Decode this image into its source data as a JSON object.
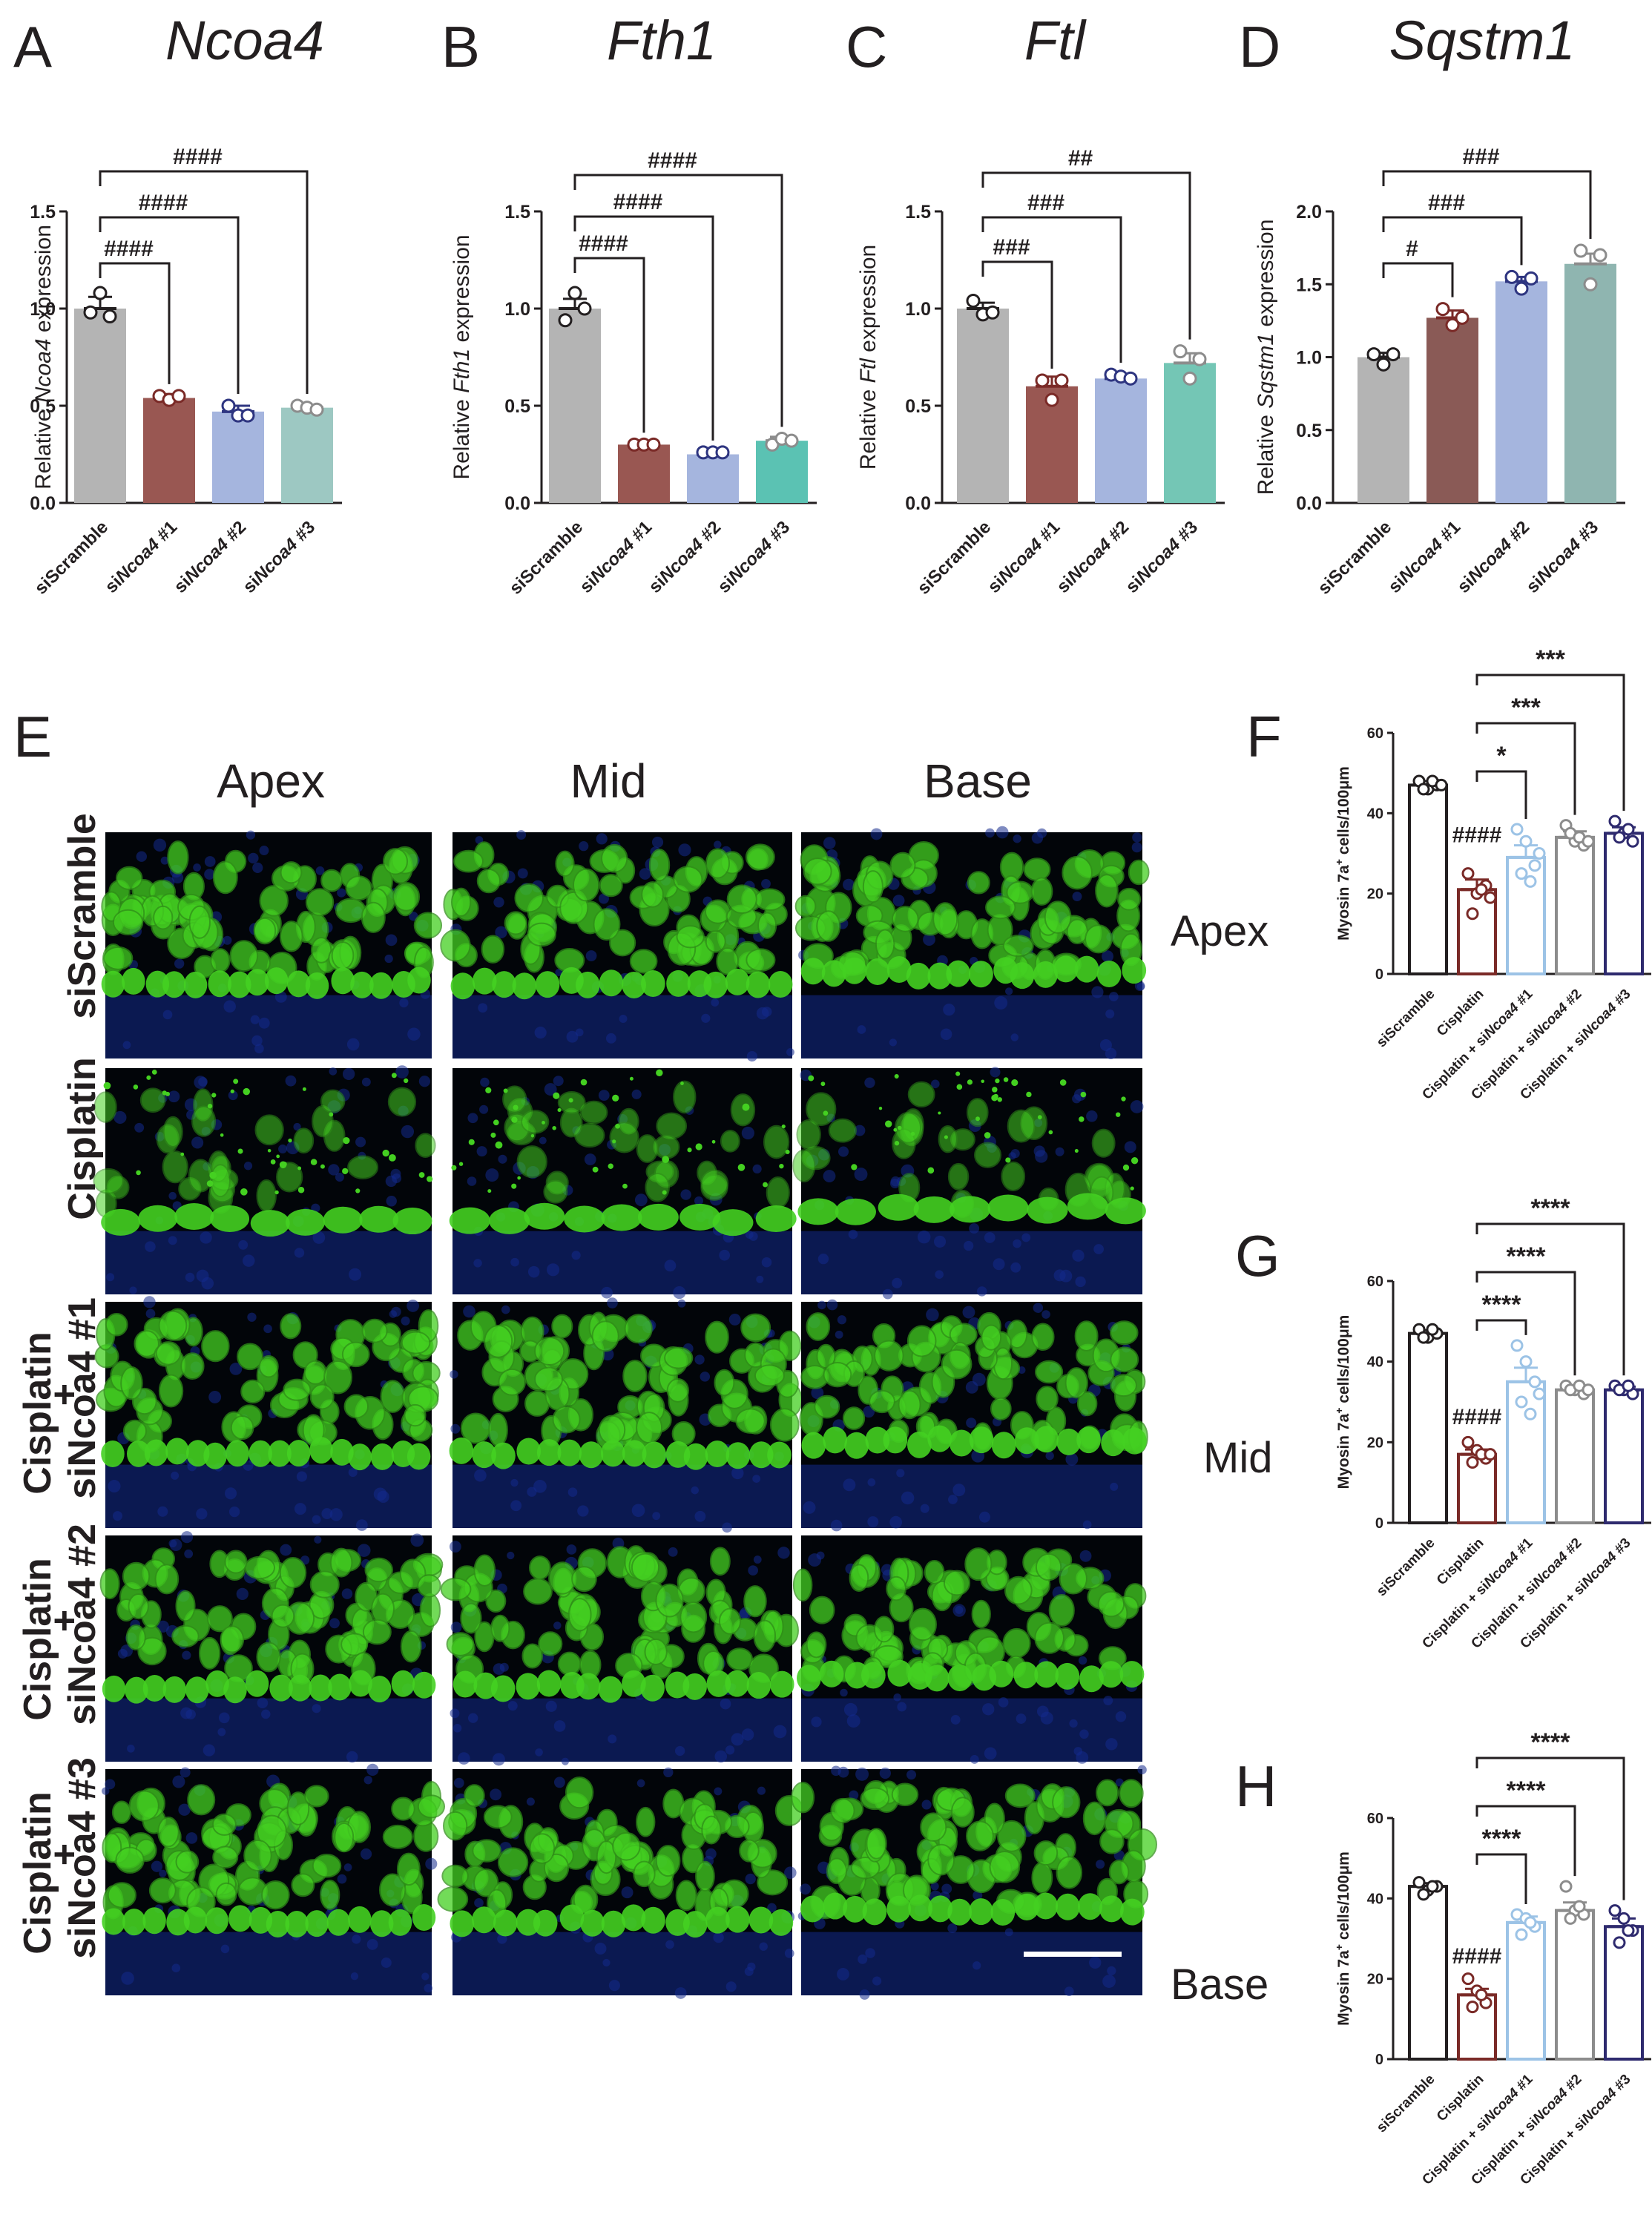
{
  "figure": {
    "panel_labels": [
      "A",
      "B",
      "C",
      "D",
      "E",
      "F",
      "G",
      "H"
    ],
    "image_panel": {
      "column_labels": [
        "Apex",
        "Mid",
        "Base"
      ],
      "side_labels": [
        "Apex",
        "Mid",
        "Base"
      ],
      "row_labels": [
        {
          "line1": "siScramble",
          "line2": "",
          "line3": ""
        },
        {
          "line1": "Cisplatin",
          "line2": "",
          "line3": ""
        },
        {
          "line1": "Cisplatin",
          "line2": "+",
          "line3": "siNcoa4 #1"
        },
        {
          "line1": "Cisplatin",
          "line2": "+",
          "line3": "siNcoa4 #2"
        },
        {
          "line1": "Cisplatin",
          "line2": "+",
          "line3": "siNcoa4 #3"
        }
      ],
      "colors": {
        "hair_cell": "#44d021",
        "nuclei": "#142a8c",
        "background": "#020509"
      }
    }
  },
  "chart_data": [
    {
      "panel": "A",
      "type": "bar",
      "title": "Ncoa4",
      "ylabel": "Relative Ncoa4 expression",
      "ylim": [
        0,
        1.5
      ],
      "yticks": [
        "0.0",
        "0.5",
        "1.0",
        "1.5"
      ],
      "categories": [
        "siScramble",
        "siNcoa4 #1",
        "siNcoa4 #2",
        "siNcoa4 #3"
      ],
      "values": [
        1.0,
        0.54,
        0.47,
        0.49
      ],
      "errors": [
        0.06,
        0.02,
        0.03,
        0.01
      ],
      "points": [
        [
          1.08,
          0.98,
          0.96
        ],
        [
          0.55,
          0.53,
          0.55
        ],
        [
          0.5,
          0.45,
          0.45
        ],
        [
          0.5,
          0.49,
          0.48
        ]
      ],
      "colors": [
        "#b4b4b4",
        "#995752",
        "#a5b5de",
        "#9dc8c2"
      ],
      "point_colors": [
        "#231f20",
        "#7a2a27",
        "#2e3580",
        "#8c8c8c"
      ],
      "comparisons": [
        {
          "to": 1,
          "label": "####"
        },
        {
          "to": 2,
          "label": "####"
        },
        {
          "to": 3,
          "label": "####"
        }
      ]
    },
    {
      "panel": "B",
      "type": "bar",
      "title": "Fth1",
      "ylabel": "Relative Fth1 expression",
      "ylim": [
        0,
        1.5
      ],
      "yticks": [
        "0.0",
        "0.5",
        "1.0",
        "1.5"
      ],
      "categories": [
        "siScramble",
        "siNcoa4 #1",
        "siNcoa4 #2",
        "siNcoa4 #3"
      ],
      "values": [
        1.0,
        0.3,
        0.25,
        0.32
      ],
      "errors": [
        0.05,
        0.01,
        0.01,
        0.02
      ],
      "points": [
        [
          1.08,
          0.94,
          1.0
        ],
        [
          0.3,
          0.3,
          0.3
        ],
        [
          0.26,
          0.26,
          0.26
        ],
        [
          0.3,
          0.33,
          0.32
        ]
      ],
      "colors": [
        "#b4b4b4",
        "#995752",
        "#a5b5de",
        "#5bc2b3"
      ],
      "point_colors": [
        "#231f20",
        "#7a2a27",
        "#2e3580",
        "#8c8c8c"
      ],
      "comparisons": [
        {
          "to": 1,
          "label": "####"
        },
        {
          "to": 2,
          "label": "####"
        },
        {
          "to": 3,
          "label": "####"
        }
      ]
    },
    {
      "panel": "C",
      "type": "bar",
      "title": "Ftl",
      "ylabel": "Relative Ftl expression",
      "ylim": [
        0,
        1.5
      ],
      "yticks": [
        "0.0",
        "0.5",
        "1.0",
        "1.5"
      ],
      "categories": [
        "siScramble",
        "siNcoa4 #1",
        "siNcoa4 #2",
        "siNcoa4 #3"
      ],
      "values": [
        1.0,
        0.6,
        0.64,
        0.72
      ],
      "errors": [
        0.03,
        0.05,
        0.02,
        0.05
      ],
      "points": [
        [
          1.04,
          0.97,
          0.98
        ],
        [
          0.63,
          0.53,
          0.63
        ],
        [
          0.66,
          0.65,
          0.64
        ],
        [
          0.78,
          0.64,
          0.74
        ]
      ],
      "colors": [
        "#b4b4b4",
        "#995752",
        "#a5b5de",
        "#74c6b5"
      ],
      "point_colors": [
        "#231f20",
        "#7a2a27",
        "#2e3580",
        "#8c8c8c"
      ],
      "comparisons": [
        {
          "to": 1,
          "label": "###"
        },
        {
          "to": 2,
          "label": "###"
        },
        {
          "to": 3,
          "label": "##"
        }
      ]
    },
    {
      "panel": "D",
      "type": "bar",
      "title": "Sqstm1",
      "ylabel": "Relative Sqstm1 expression",
      "ylim": [
        0,
        2.0
      ],
      "yticks": [
        "0.0",
        "0.5",
        "1.0",
        "1.5",
        "2.0"
      ],
      "categories": [
        "siScramble",
        "siNcoa4 #1",
        "siNcoa4 #2",
        "siNcoa4 #3"
      ],
      "values": [
        1.0,
        1.27,
        1.52,
        1.64
      ],
      "errors": [
        0.03,
        0.05,
        0.03,
        0.07
      ],
      "points": [
        [
          1.02,
          0.95,
          1.02
        ],
        [
          1.33,
          1.22,
          1.27
        ],
        [
          1.55,
          1.47,
          1.54
        ],
        [
          1.73,
          1.5,
          1.7
        ]
      ],
      "colors": [
        "#b4b4b4",
        "#8a5a56",
        "#a5b5de",
        "#8fb5b0"
      ],
      "point_colors": [
        "#231f20",
        "#7a2a27",
        "#2e3580",
        "#8c8c8c"
      ],
      "comparisons": [
        {
          "to": 1,
          "label": "#"
        },
        {
          "to": 2,
          "label": "###"
        },
        {
          "to": 3,
          "label": "###"
        }
      ]
    },
    {
      "panel": "F",
      "type": "bar",
      "title": "",
      "ylabel": "Myosin 7a+ cells/100μm",
      "ylim": [
        0,
        60
      ],
      "yticks": [
        "0",
        "20",
        "40",
        "60"
      ],
      "categories": [
        "siScramble",
        "Cisplatin",
        "Cisplatin + siNcoa4 #1",
        "Cisplatin + siNcoa4 #2",
        "Cisplatin + siNcoa4 #3"
      ],
      "values": [
        47,
        21,
        29,
        34,
        35
      ],
      "errors": [
        1,
        2.5,
        3,
        1.5,
        1.5
      ],
      "points": [
        [
          48,
          46,
          47,
          46,
          48,
          47
        ],
        [
          25,
          20,
          22,
          15,
          21,
          19
        ],
        [
          36,
          33,
          27,
          25,
          23,
          30
        ],
        [
          37,
          33,
          32,
          35,
          34,
          33
        ],
        [
          38,
          35,
          33,
          34,
          36
        ]
      ],
      "colors": [
        "#ffffff",
        "#ffffff",
        "#ffffff",
        "#ffffff",
        "#ffffff"
      ],
      "edge_colors": [
        "#231f20",
        "#7a2a27",
        "#9cc3e6",
        "#8c8c8c",
        "#2e2a6e"
      ],
      "control_label": "####",
      "comparisons": [
        {
          "to": 2,
          "label": "*"
        },
        {
          "to": 3,
          "label": "***"
        },
        {
          "to": 4,
          "label": "***"
        }
      ]
    },
    {
      "panel": "G",
      "type": "bar",
      "title": "",
      "ylabel": "Myosin 7a+ cells/100μm",
      "ylim": [
        0,
        60
      ],
      "yticks": [
        "0",
        "20",
        "40",
        "60"
      ],
      "categories": [
        "siScramble",
        "Cisplatin",
        "Cisplatin + siNcoa4 #1",
        "Cisplatin + siNcoa4 #2",
        "Cisplatin + siNcoa4 #3"
      ],
      "values": [
        47,
        17,
        35,
        33,
        33
      ],
      "errors": [
        0.8,
        1.2,
        3.5,
        1,
        0.8
      ],
      "points": [
        [
          48,
          46,
          47,
          46,
          48
        ],
        [
          20,
          18,
          16,
          15,
          17,
          17
        ],
        [
          44,
          40,
          35,
          30,
          27,
          32
        ],
        [
          34,
          33,
          32,
          33,
          34,
          33
        ],
        [
          34,
          33,
          32,
          33,
          34
        ]
      ],
      "colors": [
        "#ffffff",
        "#ffffff",
        "#ffffff",
        "#ffffff",
        "#ffffff"
      ],
      "edge_colors": [
        "#231f20",
        "#7a2a27",
        "#9cc3e6",
        "#8c8c8c",
        "#2e2a6e"
      ],
      "control_label": "####",
      "comparisons": [
        {
          "to": 2,
          "label": "****"
        },
        {
          "to": 3,
          "label": "****"
        },
        {
          "to": 4,
          "label": "****"
        }
      ]
    },
    {
      "panel": "H",
      "type": "bar",
      "title": "",
      "ylabel": "Myosin 7a+ cells/100μm",
      "ylim": [
        0,
        60
      ],
      "yticks": [
        "0",
        "20",
        "40",
        "60"
      ],
      "categories": [
        "siScramble",
        "Cisplatin",
        "Cisplatin + siNcoa4 #1",
        "Cisplatin + siNcoa4 #2",
        "Cisplatin + siNcoa4 #3"
      ],
      "values": [
        43,
        16,
        34,
        37,
        33
      ],
      "errors": [
        0.8,
        1.5,
        1.5,
        2,
        2
      ],
      "points": [
        [
          44,
          42,
          43,
          41,
          43
        ],
        [
          20,
          17,
          14,
          13,
          16
        ],
        [
          36,
          35,
          33,
          31,
          34
        ],
        [
          43,
          37,
          36,
          35,
          38
        ],
        [
          37,
          35,
          32,
          29,
          32
        ]
      ],
      "colors": [
        "#ffffff",
        "#ffffff",
        "#ffffff",
        "#ffffff",
        "#ffffff"
      ],
      "edge_colors": [
        "#231f20",
        "#7a2a27",
        "#9cc3e6",
        "#8c8c8c",
        "#2e2a6e"
      ],
      "control_label": "####",
      "comparisons": [
        {
          "to": 2,
          "label": "****"
        },
        {
          "to": 3,
          "label": "****"
        },
        {
          "to": 4,
          "label": "****"
        }
      ]
    }
  ]
}
